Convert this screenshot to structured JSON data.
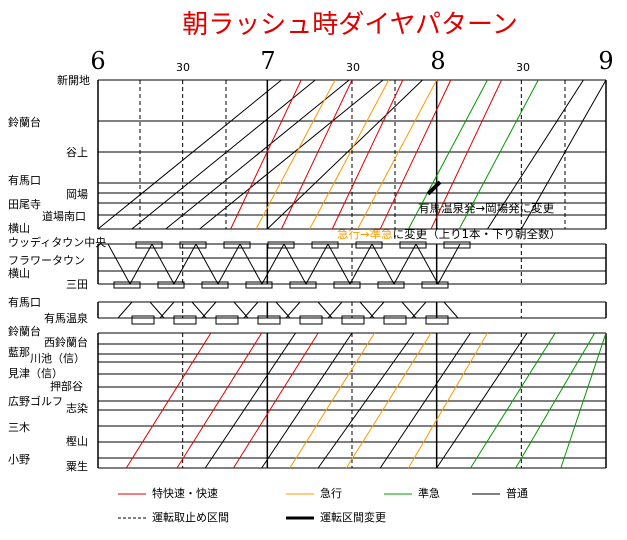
{
  "chart_data": {
    "type": "line",
    "title": "朝ラッシュ時ダイヤパターン",
    "x_hours": [
      "6",
      "7",
      "8",
      "9"
    ],
    "x_halves": [
      "30",
      "30",
      "30"
    ],
    "x_range": [
      "6:00",
      "9:00"
    ],
    "stations": {
      "main_upper": [
        "新開地",
        "鈴蘭台",
        "谷上",
        "有馬口",
        "岡場",
        "田尾寺",
        "道場南口",
        "横山"
      ],
      "mid": [
        "ウッディタウン中央",
        "フラワータウン",
        "横山",
        "三田"
      ],
      "arima": [
        "有馬口",
        "有馬温泉"
      ],
      "ao": [
        "鈴蘭台",
        "西鈴蘭台",
        "藍那",
        "川池（信）",
        "見津（信）",
        "押部谷",
        "広野ゴルフ",
        "志染",
        "三木",
        "樫山",
        "小野",
        "粟生"
      ]
    },
    "annotations": {
      "okaba_change": "有馬温泉発→岡場発に変更",
      "express_change_colored": "急行→準急",
      "express_change_rest": "に変更（上り1本・下り朝全数）"
    },
    "colors": {
      "rapid": "#e00000",
      "express": "#ff9900",
      "semi_express": "#009900",
      "local": "#000000",
      "title": "#e00000"
    },
    "legend": [
      {
        "key": "rapid",
        "label": "特快速・快速",
        "style": "solid"
      },
      {
        "key": "express",
        "label": "急行",
        "style": "solid"
      },
      {
        "key": "semi_express",
        "label": "準急",
        "style": "solid"
      },
      {
        "key": "local",
        "label": "普通",
        "style": "solid"
      },
      {
        "key": "suspended",
        "label": "運転取止め区間",
        "style": "dashed"
      },
      {
        "key": "changed",
        "label": "運転区間変更",
        "style": "thick"
      }
    ],
    "series": {
      "upper_main_trains": [
        {
          "type": "local",
          "from": "6:00",
          "to": "7:05"
        },
        {
          "type": "local",
          "from": "6:12",
          "to": "7:17"
        },
        {
          "type": "local",
          "from": "6:24",
          "to": "7:29"
        },
        {
          "type": "local",
          "from": "6:36",
          "to": "7:41"
        },
        {
          "type": "rapid",
          "from": "6:47",
          "to": "7:12"
        },
        {
          "type": "express",
          "from": "6:56",
          "to": "7:24"
        },
        {
          "type": "local",
          "from": "7:00",
          "to": "7:55"
        },
        {
          "type": "rapid",
          "from": "7:05",
          "to": "7:30"
        },
        {
          "type": "express",
          "from": "7:15",
          "to": "7:43"
        },
        {
          "type": "rapid",
          "from": "7:23",
          "to": "7:48"
        },
        {
          "type": "express",
          "from": "7:32",
          "to": "8:00"
        },
        {
          "type": "rapid",
          "from": "7:40",
          "to": "8:05"
        },
        {
          "type": "semi_express",
          "from": "7:50",
          "to": "8:18"
        },
        {
          "type": "rapid",
          "from": "7:58",
          "to": "8:23"
        },
        {
          "type": "semi_express",
          "from": "8:08",
          "to": "8:36"
        },
        {
          "type": "local",
          "from": "8:18",
          "to": "8:52"
        },
        {
          "type": "local",
          "from": "8:30",
          "to": "9:00"
        }
      ],
      "ao_trains": [
        {
          "type": "rapid",
          "from": "6:10",
          "to": "6:40"
        },
        {
          "type": "rapid",
          "from": "6:28",
          "to": "6:58"
        },
        {
          "type": "local",
          "from": "6:38",
          "to": "7:10"
        },
        {
          "type": "rapid",
          "from": "6:48",
          "to": "7:18"
        },
        {
          "type": "local",
          "from": "6:58",
          "to": "7:30"
        },
        {
          "type": "express",
          "from": "7:08",
          "to": "7:38"
        },
        {
          "type": "local",
          "from": "7:18",
          "to": "7:52"
        },
        {
          "type": "express",
          "from": "7:28",
          "to": "7:58"
        },
        {
          "type": "local",
          "from": "7:40",
          "to": "8:12"
        },
        {
          "type": "express",
          "from": "7:50",
          "to": "8:18"
        },
        {
          "type": "local",
          "from": "8:00",
          "to": "8:32"
        },
        {
          "type": "semi_express",
          "from": "8:12",
          "to": "8:42"
        },
        {
          "type": "semi_express",
          "from": "8:28",
          "to": "8:56"
        },
        {
          "type": "semi_express",
          "from": "8:44",
          "to": "9:00"
        }
      ]
    }
  }
}
